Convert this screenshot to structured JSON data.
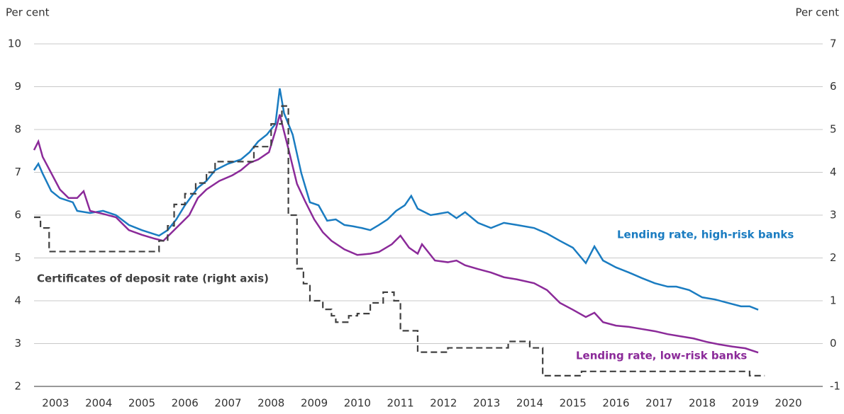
{
  "chart_data": {
    "type": "line",
    "y_label": "Per cent",
    "y2_label": "Per cent",
    "xlim": [
      2003,
      2021
    ],
    "xticks": [
      {
        "value": 2003.5,
        "label": "2003"
      },
      {
        "value": 2004.5,
        "label": "2004"
      },
      {
        "value": 2005.5,
        "label": "2005"
      },
      {
        "value": 2006.5,
        "label": "2006"
      },
      {
        "value": 2007.5,
        "label": "2007"
      },
      {
        "value": 2008.5,
        "label": "2008"
      },
      {
        "value": 2009.5,
        "label": "2009"
      },
      {
        "value": 2010.5,
        "label": "2010"
      },
      {
        "value": 2011.5,
        "label": "2011"
      },
      {
        "value": 2012.5,
        "label": "2012"
      },
      {
        "value": 2013.5,
        "label": "2013"
      },
      {
        "value": 2014.5,
        "label": "2014"
      },
      {
        "value": 2015.5,
        "label": "2015"
      },
      {
        "value": 2016.5,
        "label": "2016"
      },
      {
        "value": 2017.5,
        "label": "2017"
      },
      {
        "value": 2018.5,
        "label": "2018"
      },
      {
        "value": 2019.5,
        "label": "2019"
      },
      {
        "value": 2020.5,
        "label": "2020"
      }
    ],
    "ylim": [
      2,
      10
    ],
    "yticks": [
      2,
      3,
      4,
      5,
      6,
      7,
      8,
      9,
      10
    ],
    "y2lim": [
      -1,
      7
    ],
    "y2ticks": [
      -1,
      0,
      1,
      2,
      3,
      4,
      5,
      6,
      7
    ],
    "grid": true,
    "series": [
      {
        "name": "Lending rate, high-risk banks",
        "color": "#1a7cc1",
        "x": [
          2003.0,
          2003.1,
          2003.2,
          2003.4,
          2003.6,
          2003.9,
          2004.0,
          2004.3,
          2004.6,
          2004.9,
          2005.2,
          2005.5,
          2005.9,
          2006.1,
          2006.3,
          2006.5,
          2006.8,
          2007.0,
          2007.2,
          2007.5,
          2007.8,
          2008.0,
          2008.2,
          2008.4,
          2008.6,
          2008.7,
          2008.8,
          2009.0,
          2009.2,
          2009.4,
          2009.6,
          2009.8,
          2010.0,
          2010.2,
          2010.4,
          2010.6,
          2010.8,
          2011.0,
          2011.2,
          2011.4,
          2011.6,
          2011.75,
          2011.9,
          2012.2,
          2012.6,
          2012.8,
          2013.0,
          2013.3,
          2013.6,
          2013.9,
          2014.2,
          2014.6,
          2014.9,
          2015.2,
          2015.5,
          2015.8,
          2016.0,
          2016.2,
          2016.5,
          2016.8,
          2017.1,
          2017.4,
          2017.7,
          2017.9,
          2018.2,
          2018.5,
          2018.8,
          2019.1,
          2019.4,
          2019.6,
          2019.8
        ],
        "values": [
          7.05,
          7.2,
          6.97,
          6.56,
          6.4,
          6.3,
          6.1,
          6.05,
          6.1,
          6.0,
          5.77,
          5.65,
          5.52,
          5.65,
          5.9,
          6.23,
          6.64,
          6.8,
          7.05,
          7.2,
          7.3,
          7.47,
          7.72,
          7.88,
          8.13,
          8.96,
          8.38,
          7.88,
          6.98,
          6.3,
          6.23,
          5.87,
          5.9,
          5.77,
          5.74,
          5.7,
          5.65,
          5.77,
          5.9,
          6.1,
          6.23,
          6.45,
          6.15,
          6.0,
          6.07,
          5.93,
          6.07,
          5.82,
          5.7,
          5.82,
          5.77,
          5.7,
          5.57,
          5.4,
          5.24,
          4.88,
          5.27,
          4.94,
          4.78,
          4.66,
          4.53,
          4.41,
          4.33,
          4.33,
          4.25,
          4.08,
          4.03,
          3.95,
          3.87,
          3.87,
          3.79
        ]
      },
      {
        "name": "Lending rate, low-risk banks",
        "color": "#8b2a99",
        "x": [
          2003.0,
          2003.1,
          2003.2,
          2003.4,
          2003.6,
          2003.8,
          2004.0,
          2004.15,
          2004.3,
          2004.6,
          2004.9,
          2005.2,
          2005.5,
          2005.8,
          2006.0,
          2006.3,
          2006.6,
          2006.8,
          2007.0,
          2007.3,
          2007.6,
          2007.8,
          2008.0,
          2008.2,
          2008.45,
          2008.6,
          2008.7,
          2008.9,
          2009.1,
          2009.3,
          2009.5,
          2009.7,
          2009.9,
          2010.2,
          2010.5,
          2010.8,
          2011.0,
          2011.3,
          2011.5,
          2011.7,
          2011.9,
          2012.0,
          2012.3,
          2012.6,
          2012.8,
          2013.0,
          2013.3,
          2013.6,
          2013.9,
          2014.2,
          2014.6,
          2014.9,
          2015.2,
          2015.5,
          2015.8,
          2016.0,
          2016.2,
          2016.5,
          2016.8,
          2017.1,
          2017.4,
          2017.7,
          2018.0,
          2018.3,
          2018.6,
          2018.9,
          2019.2,
          2019.5,
          2019.8
        ],
        "values": [
          7.52,
          7.72,
          7.36,
          6.98,
          6.6,
          6.4,
          6.4,
          6.56,
          6.1,
          6.03,
          5.95,
          5.65,
          5.54,
          5.45,
          5.4,
          5.7,
          6.0,
          6.4,
          6.6,
          6.8,
          6.93,
          7.05,
          7.22,
          7.3,
          7.47,
          7.97,
          8.35,
          7.55,
          6.73,
          6.3,
          5.9,
          5.6,
          5.4,
          5.2,
          5.07,
          5.1,
          5.14,
          5.32,
          5.52,
          5.24,
          5.1,
          5.32,
          4.94,
          4.9,
          4.94,
          4.83,
          4.74,
          4.66,
          4.55,
          4.5,
          4.41,
          4.25,
          3.95,
          3.79,
          3.62,
          3.72,
          3.5,
          3.42,
          3.39,
          3.34,
          3.29,
          3.22,
          3.17,
          3.12,
          3.04,
          2.98,
          2.93,
          2.89,
          2.79
        ]
      },
      {
        "name": "Certificates of deposit rate (right axis)",
        "color": "#404040",
        "axis": "y2",
        "dash": true,
        "drawstyle": "steps-post",
        "x": [
          2003.0,
          2003.15,
          2003.35,
          2005.9,
          2006.1,
          2006.25,
          2006.5,
          2006.75,
          2007.0,
          2007.2,
          2008.1,
          2008.5,
          2008.75,
          2008.9,
          2009.1,
          2009.25,
          2009.4,
          2009.7,
          2009.9,
          2010.0,
          2010.3,
          2010.5,
          2010.8,
          2011.1,
          2011.35,
          2011.5,
          2011.9,
          2012.6,
          2014.0,
          2014.5,
          2014.8,
          2015.7,
          2019.6,
          2019.95
        ],
        "values": [
          2.95,
          2.7,
          2.15,
          2.4,
          2.75,
          3.25,
          3.5,
          3.75,
          4.0,
          4.25,
          4.6,
          5.13,
          5.55,
          3.0,
          1.75,
          1.4,
          1.0,
          0.8,
          0.65,
          0.5,
          0.65,
          0.7,
          0.95,
          1.2,
          1.0,
          0.3,
          -0.2,
          -0.1,
          0.05,
          -0.1,
          -0.75,
          -0.65,
          -0.75,
          -0.75
        ]
      }
    ]
  }
}
